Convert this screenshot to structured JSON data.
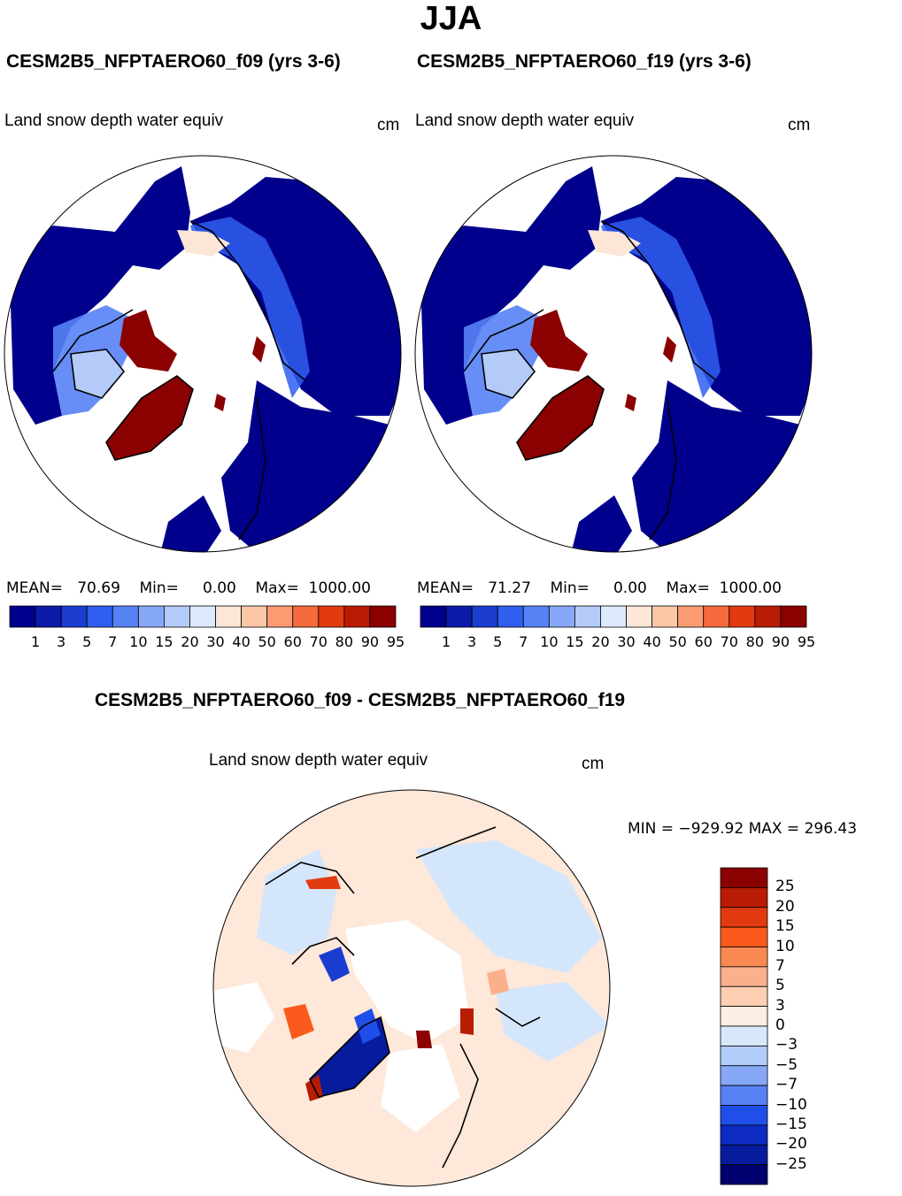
{
  "header": {
    "season": "JJA",
    "left_title": "CESM2B5_NFPTAERO60_f09 (yrs 3-6)",
    "right_title": "CESM2B5_NFPTAERO60_f19 (yrs 3-6)",
    "diff_title": "CESM2B5_NFPTAERO60_f09 - CESM2B5_NFPTAERO60_f19"
  },
  "variable": "Land snow depth water equiv",
  "units": "cm",
  "colors": {
    "background": "#ffffff",
    "land_low": "#00008c",
    "ice_cap": "#8b0000",
    "no_data": "#ffffff",
    "diff_pos": "#fde0cf",
    "diff_neg": "#d4e6fb"
  },
  "chart_data": [
    {
      "type": "heatmap",
      "title": "CESM2B5_NFPTAERO60_f09 (yrs 3-6)",
      "projection": "north polar stereographic",
      "variable": "Land snow depth water equiv",
      "units": "cm",
      "stats": {
        "mean_label": "MEAN=",
        "mean": "70.69",
        "min_label": "Min=",
        "min": "0.00",
        "max_label": "Max=",
        "max": "1000.00"
      },
      "colorbar_ticks": [
        "1",
        "3",
        "5",
        "7",
        "10",
        "15",
        "20",
        "30",
        "40",
        "50",
        "60",
        "70",
        "80",
        "90",
        "95"
      ],
      "colorbar_colors": [
        "#00008c",
        "#0c1ba8",
        "#1a3dd0",
        "#2f5ef0",
        "#5682f5",
        "#86a8f7",
        "#b4cbf9",
        "#dde9fb",
        "#fde6d8",
        "#fbc7a7",
        "#fa9b72",
        "#f56a3c",
        "#e23b12",
        "#b81c03",
        "#8b0000"
      ]
    },
    {
      "type": "heatmap",
      "title": "CESM2B5_NFPTAERO60_f19 (yrs 3-6)",
      "projection": "north polar stereographic",
      "variable": "Land snow depth water equiv",
      "units": "cm",
      "stats": {
        "mean_label": "MEAN=",
        "mean": "71.27",
        "min_label": "Min=",
        "min": "0.00",
        "max_label": "Max=",
        "max": "1000.00"
      },
      "colorbar_ticks": [
        "1",
        "3",
        "5",
        "7",
        "10",
        "15",
        "20",
        "30",
        "40",
        "50",
        "60",
        "70",
        "80",
        "90",
        "95"
      ],
      "colorbar_colors": [
        "#00008c",
        "#0c1ba8",
        "#1a3dd0",
        "#2f5ef0",
        "#5682f5",
        "#86a8f7",
        "#b4cbf9",
        "#dde9fb",
        "#fde6d8",
        "#fbc7a7",
        "#fa9b72",
        "#f56a3c",
        "#e23b12",
        "#b81c03",
        "#8b0000"
      ]
    },
    {
      "type": "heatmap",
      "title": "CESM2B5_NFPTAERO60_f09 - CESM2B5_NFPTAERO60_f19",
      "projection": "north polar stereographic",
      "variable": "Land snow depth water equiv",
      "units": "cm",
      "stats_text": "MIN = −929.92  MAX = 296.43",
      "colorbar_ticks": [
        "25",
        "20",
        "15",
        "10",
        "7",
        "5",
        "3",
        "0",
        "−3",
        "−5",
        "−7",
        "−10",
        "−15",
        "−20",
        "−25"
      ],
      "colorbar_colors": [
        "#8b0000",
        "#b81c03",
        "#e23b12",
        "#fa5a1c",
        "#fb8a52",
        "#fbb08c",
        "#fccfb3",
        "#fdeee3",
        "#d7e8fb",
        "#b2cdf9",
        "#86a8f7",
        "#5682f5",
        "#1f4fe8",
        "#0d2bc0",
        "#061c9c",
        "#00006e"
      ]
    }
  ]
}
